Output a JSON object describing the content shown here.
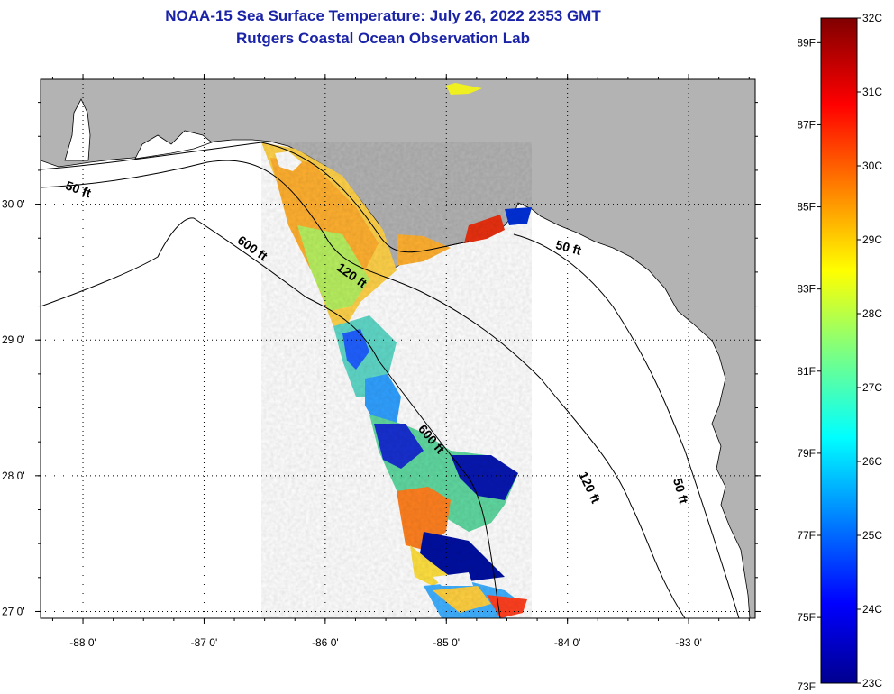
{
  "title": {
    "line1": "NOAA-15 Sea Surface Temperature:  July 26, 2022 2353 GMT",
    "line2": "Rutgers Coastal Ocean Observation Lab"
  },
  "colors": {
    "title": "#1a23a8",
    "land": "#b3b3b3",
    "ocean": "#ffffff"
  },
  "map": {
    "lon_range": [
      -88.35,
      -82.45
    ],
    "lat_range": [
      26.95,
      30.92
    ],
    "lon_ticks": [
      {
        "value": -88,
        "label": "-88 0'"
      },
      {
        "value": -87,
        "label": "-87 0'"
      },
      {
        "value": -86,
        "label": "-86 0'"
      },
      {
        "value": -85,
        "label": "-85 0'"
      },
      {
        "value": -84,
        "label": "-84 0'"
      },
      {
        "value": -83,
        "label": "-83 0'"
      }
    ],
    "lat_ticks": [
      {
        "value": 30,
        "label": "30 0'"
      },
      {
        "value": 29,
        "label": "29 0'"
      },
      {
        "value": 28,
        "label": "28 0'"
      },
      {
        "value": 27,
        "label": "27 0'"
      }
    ],
    "contour_labels": [
      {
        "text": "50 ft",
        "lon": -88.05,
        "lat": 30.08
      },
      {
        "text": "600 ft",
        "lon": -86.62,
        "lat": 29.65
      },
      {
        "text": "120 ft",
        "lon": -85.8,
        "lat": 29.45
      },
      {
        "text": "50 ft",
        "lon": -84.0,
        "lat": 29.65
      },
      {
        "text": "600 ft",
        "lon": -85.15,
        "lat": 28.25
      },
      {
        "text": "120 ft",
        "lon": -83.85,
        "lat": 27.9
      },
      {
        "text": "50 ft",
        "lon": -83.1,
        "lat": 27.88
      }
    ]
  },
  "colorbar": {
    "fahrenheit_labels": [
      "89F",
      "87F",
      "85F",
      "83F",
      "81F",
      "79F",
      "77F",
      "75F",
      "73F"
    ],
    "celsius_labels": [
      "32C",
      "31C",
      "30C",
      "29C",
      "28C",
      "27C",
      "26C",
      "25C",
      "24C",
      "23C"
    ],
    "celsius_range": [
      23,
      32
    ]
  }
}
